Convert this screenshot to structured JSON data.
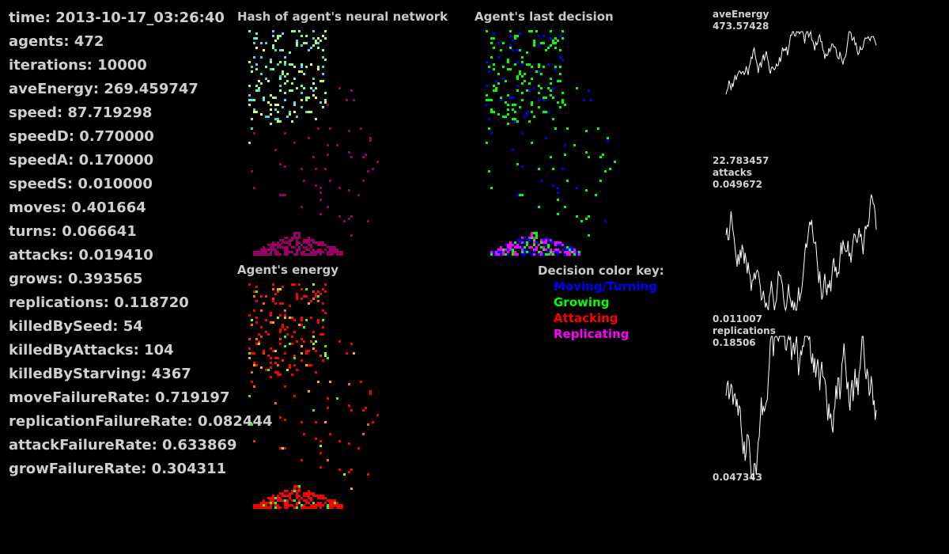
{
  "stats": [
    "time: 2013-10-17_03:26:40",
    "agents: 472",
    "iterations: 10000",
    "aveEnergy: 269.459747",
    "speed: 87.719298",
    "speedD: 0.770000",
    "speedA: 0.170000",
    "speedS: 0.010000",
    "moves: 0.401664",
    "turns: 0.066641",
    "attacks: 0.019410",
    "grows: 0.393565",
    "replications: 0.118720",
    "killedBySeed: 54",
    "killedByAttacks: 104",
    "killedByStarving: 4367",
    "moveFailureRate: 0.719197",
    "replicationFailureRate: 0.082444",
    "attackFailureRate: 0.633869",
    "growFailureRate: 0.304311"
  ],
  "panels": {
    "hash_title": "Hash of agent's neural network",
    "decision_title": "Agent's last decision",
    "energy_title": "Agent's energy"
  },
  "decision_key": {
    "title": "Decision color key:",
    "items": [
      {
        "label": "Moving/Turning",
        "color": "#0000ff"
      },
      {
        "label": "Growing",
        "color": "#00ff00"
      },
      {
        "label": "Attacking",
        "color": "#ff0000"
      },
      {
        "label": "Replicating",
        "color": "#ff00ff"
      }
    ]
  },
  "graphs": [
    {
      "name": "aveEnergy",
      "max": "473.57428",
      "min": "22.783457",
      "color": "#ffffff"
    },
    {
      "name": "attacks",
      "max": "0.049672",
      "min": "0.011007",
      "color": "#ffffff"
    },
    {
      "name": "replications",
      "max": "0.18506",
      "min": "0.047343",
      "color": "#ffffff"
    }
  ],
  "colors": {
    "background": "#000000",
    "text": "#cfcfcf",
    "hash_palette": [
      "#66ffcc",
      "#99ff66",
      "#ccff33",
      "#33ddcc",
      "#ffff66",
      "#66ccff",
      "#88ff88"
    ],
    "hash_seed_color": "#990066",
    "energy_palette": [
      "#ff0000",
      "#ff3300",
      "#ff6600",
      "#99ff00",
      "#33ff00",
      "#ffaa00"
    ]
  }
}
